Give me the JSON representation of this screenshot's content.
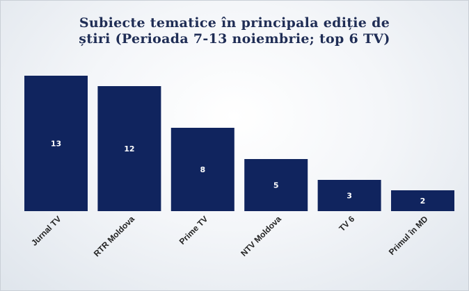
{
  "chart_data": {
    "type": "bar",
    "title_line1": "Subiecte tematice în principala ediție de",
    "title_line2": "știri (Perioada 7-13 noiembrie; top 6 TV)",
    "categories": [
      "Jurnal TV",
      "RTR Moldova",
      "Prime TV",
      "NTV Moldova",
      "TV 6",
      "Primul în MD"
    ],
    "values": [
      13,
      12,
      8,
      5,
      3,
      2
    ],
    "bar_color": "#10245e",
    "grid": false,
    "legend": "none"
  }
}
